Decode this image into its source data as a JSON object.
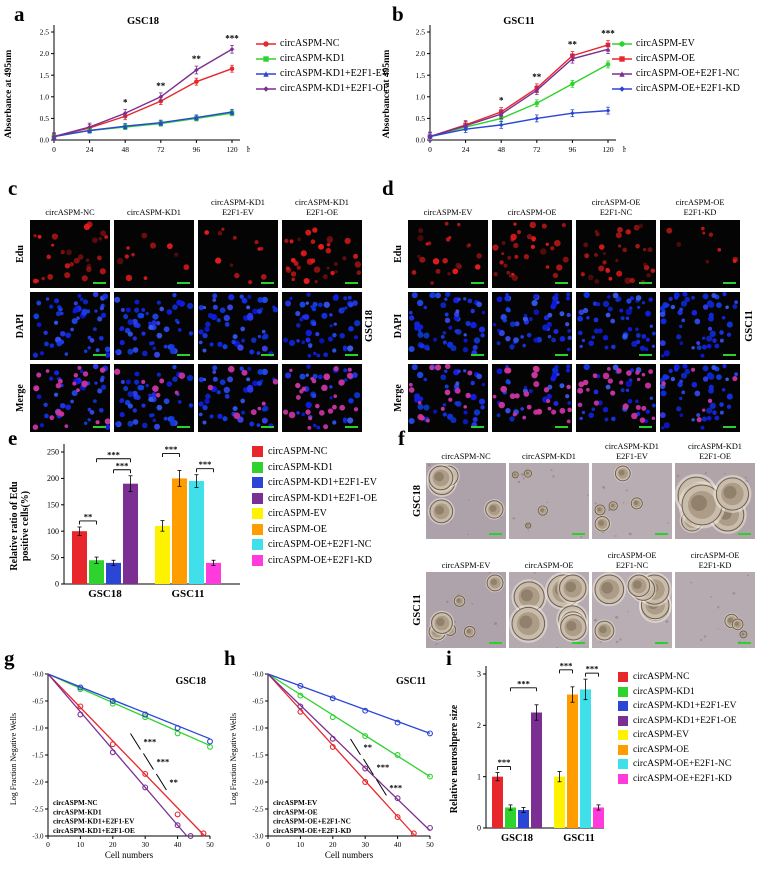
{
  "colors": {
    "red": "#e8272c",
    "green": "#2ed32e",
    "blue": "#2b45d4",
    "purple": "#7b2f92",
    "yellow": "#fff200",
    "orange": "#ff9d00",
    "cyan": "#3fe0ea",
    "magenta": "#ff3bdb",
    "scalebar": "#2bd12b",
    "axis": "#000000"
  },
  "panels": {
    "a": {
      "letter": "a"
    },
    "b": {
      "letter": "b"
    },
    "c": {
      "letter": "c",
      "row_labels": [
        "Edu",
        "DAPI",
        "Merge"
      ],
      "side_label": "GSC18",
      "col_headers": [
        [
          "circASPM-NC"
        ],
        [
          "circASPM-KD1"
        ],
        [
          "circASPM-KD1",
          "E2F1-EV"
        ],
        [
          "circASPM-KD1",
          "E2F1-OE"
        ]
      ]
    },
    "d": {
      "letter": "d",
      "row_labels": [
        "Edu",
        "DAPI",
        "Merge"
      ],
      "side_label": "GSC11",
      "col_headers": [
        [
          "circASPM-EV"
        ],
        [
          "circASPM-OE"
        ],
        [
          "circASPM-OE",
          "E2F1-NC"
        ],
        [
          "circASPM-OE",
          "E2F1-KD"
        ]
      ]
    },
    "e": {
      "letter": "e"
    },
    "f": {
      "letter": "f",
      "rows": [
        {
          "side_label": "GSC18",
          "col_headers": [
            [
              "circASPM-NC"
            ],
            [
              "circASPM-KD1"
            ],
            [
              "circASPM-KD1",
              "E2F1-EV"
            ],
            [
              "circASPM-KD1",
              "E2F1-OE"
            ]
          ]
        },
        {
          "side_label": "GSC11",
          "col_headers": [
            [
              "circASPM-EV"
            ],
            [
              "circASPM-OE"
            ],
            [
              "circASPM-OE",
              "E2F1-NC"
            ],
            [
              "circASPM-OE",
              "E2F1-KD"
            ]
          ]
        }
      ]
    },
    "g": {
      "letter": "g"
    },
    "h": {
      "letter": "h"
    },
    "i": {
      "letter": "i"
    }
  },
  "chart_data": [
    {
      "id": "a",
      "type": "line",
      "title": "GSC18",
      "ylabel": "Absorbance at 495nm",
      "xunit": "h",
      "x": [
        0,
        24,
        48,
        72,
        96,
        120
      ],
      "ylim": [
        0,
        2.5
      ],
      "yticks": [
        "0.0",
        "0.5",
        "1.0",
        "1.5",
        "2.0",
        "2.5"
      ],
      "series": [
        {
          "name": "circASPM-NC",
          "color_key": "red",
          "err": 0.08,
          "values": [
            0.08,
            0.28,
            0.55,
            0.9,
            1.35,
            1.65
          ]
        },
        {
          "name": "circASPM-KD1",
          "color_key": "green",
          "err": 0.06,
          "values": [
            0.08,
            0.22,
            0.3,
            0.38,
            0.5,
            0.62
          ]
        },
        {
          "name": "circASPM-KD1+E2F1-EV",
          "color_key": "blue",
          "err": 0.06,
          "values": [
            0.08,
            0.22,
            0.32,
            0.4,
            0.52,
            0.65
          ]
        },
        {
          "name": "circASPM-KD1+E2F1-OE",
          "color_key": "purple",
          "err": 0.09,
          "values": [
            0.08,
            0.3,
            0.62,
            1.0,
            1.62,
            2.1
          ]
        }
      ],
      "significance": [
        {
          "x": 48,
          "label": "*"
        },
        {
          "x": 72,
          "label": "**"
        },
        {
          "x": 96,
          "label": "**"
        },
        {
          "x": 120,
          "label": "***"
        }
      ]
    },
    {
      "id": "b",
      "type": "line",
      "title": "GSC11",
      "ylabel": "Absorbance at 495nm",
      "xunit": "h",
      "x": [
        0,
        24,
        48,
        72,
        96,
        120
      ],
      "ylim": [
        0,
        2.5
      ],
      "yticks": [
        "0.0",
        "0.5",
        "1.0",
        "1.5",
        "2.0",
        "2.5"
      ],
      "series": [
        {
          "name": "circASPM-EV",
          "color_key": "green",
          "err": 0.08,
          "values": [
            0.08,
            0.3,
            0.5,
            0.85,
            1.3,
            1.75
          ]
        },
        {
          "name": "circASPM-OE",
          "color_key": "red",
          "err": 0.1,
          "values": [
            0.08,
            0.35,
            0.65,
            1.2,
            1.95,
            2.2
          ]
        },
        {
          "name": "circASPM-OE+E2F1-NC",
          "color_key": "purple",
          "err": 0.1,
          "values": [
            0.08,
            0.33,
            0.6,
            1.15,
            1.88,
            2.1
          ]
        },
        {
          "name": "circASPM-OE+E2F1-KD",
          "color_key": "blue",
          "err": 0.08,
          "values": [
            0.08,
            0.25,
            0.35,
            0.5,
            0.62,
            0.68
          ]
        }
      ],
      "significance": [
        {
          "x": 48,
          "label": "*"
        },
        {
          "x": 72,
          "label": "**"
        },
        {
          "x": 96,
          "label": "**"
        },
        {
          "x": 120,
          "label": "***"
        }
      ]
    },
    {
      "id": "e",
      "type": "bar",
      "ylabel": "Relative ratio of Edu\npositive cells(%)",
      "ylim": [
        0,
        250
      ],
      "yticks": [
        "0",
        "50",
        "100",
        "150",
        "200",
        "250"
      ],
      "groups": [
        "GSC18",
        "GSC11"
      ],
      "bars": [
        {
          "group": "GSC18",
          "name": "circASPM-NC",
          "color_key": "red",
          "value": 100,
          "err": 8
        },
        {
          "group": "GSC18",
          "name": "circASPM-KD1",
          "color_key": "green",
          "value": 45,
          "err": 6
        },
        {
          "group": "GSC18",
          "name": "circASPM-KD1+E2F1-EV",
          "color_key": "blue",
          "value": 40,
          "err": 5
        },
        {
          "group": "GSC18",
          "name": "circASPM-KD1+E2F1-OE",
          "color_key": "purple",
          "value": 190,
          "err": 15
        },
        {
          "group": "GSC11",
          "name": "circASPM-EV",
          "color_key": "yellow",
          "value": 110,
          "err": 10
        },
        {
          "group": "GSC11",
          "name": "circASPM-OE",
          "color_key": "orange",
          "value": 200,
          "err": 15
        },
        {
          "group": "GSC11",
          "name": "circASPM-OE+E2F1-NC",
          "color_key": "cyan",
          "value": 195,
          "err": 12
        },
        {
          "group": "GSC11",
          "name": "circASPM-OE+E2F1-KD",
          "color_key": "magenta",
          "value": 40,
          "err": 5
        }
      ],
      "legend": [
        {
          "label": "circASPM-NC",
          "color_key": "red"
        },
        {
          "label": "circASPM-KD1",
          "color_key": "green"
        },
        {
          "label": "circASPM-KD1+E2F1-EV",
          "color_key": "blue"
        },
        {
          "label": "circASPM-KD1+E2F1-OE",
          "color_key": "purple"
        },
        {
          "label": "circASPM-EV",
          "color_key": "yellow"
        },
        {
          "label": "circASPM-OE",
          "color_key": "orange"
        },
        {
          "label": "circASPM-OE+E2F1-NC",
          "color_key": "cyan"
        },
        {
          "label": "circASPM-OE+E2F1-KD",
          "color_key": "magenta"
        }
      ],
      "significance": [
        {
          "from": 0,
          "to": 1,
          "label": "**",
          "h": 0
        },
        {
          "from": 1,
          "to": 3,
          "label": "***",
          "h": 1
        },
        {
          "from": 2,
          "to": 3,
          "label": "***",
          "h": 0
        },
        {
          "from": 4,
          "to": 5,
          "label": "***",
          "h": 1
        },
        {
          "from": 6,
          "to": 7,
          "label": "***",
          "h": 0
        }
      ]
    },
    {
      "id": "g",
      "type": "scatter",
      "title": "GSC18",
      "xlabel": "Cell numbers",
      "ylabel": "Log Fraction Negative Wells",
      "xlim": [
        0,
        50
      ],
      "ylim": [
        -3.0,
        0
      ],
      "xticks": [
        "0",
        "10",
        "20",
        "30",
        "40",
        "50"
      ],
      "yticks": [
        "-0.0",
        "-0.5",
        "-1.0",
        "-1.5",
        "-2.0",
        "-2.5",
        "-3.0"
      ],
      "series": [
        {
          "name": "circASPM-NC",
          "color_key": "red",
          "slope": -0.062,
          "points": [
            [
              10,
              -0.6
            ],
            [
              20,
              -1.3
            ],
            [
              30,
              -1.85
            ],
            [
              40,
              -2.6
            ],
            [
              48,
              -2.95
            ]
          ]
        },
        {
          "name": "circASPM-KD1",
          "color_key": "green",
          "slope": -0.0265,
          "points": [
            [
              10,
              -0.28
            ],
            [
              20,
              -0.55
            ],
            [
              30,
              -0.8
            ],
            [
              40,
              -1.1
            ],
            [
              50,
              -1.35
            ]
          ]
        },
        {
          "name": "circASPM-KD1+E2F1-EV",
          "color_key": "blue",
          "slope": -0.024,
          "points": [
            [
              10,
              -0.25
            ],
            [
              20,
              -0.5
            ],
            [
              30,
              -0.75
            ],
            [
              40,
              -1.0
            ],
            [
              50,
              -1.25
            ]
          ]
        },
        {
          "name": "circASPM-KD1+E2F1-OE",
          "color_key": "purple",
          "slope": -0.07,
          "points": [
            [
              10,
              -0.75
            ],
            [
              20,
              -1.45
            ],
            [
              30,
              -2.1
            ],
            [
              40,
              -2.8
            ],
            [
              44,
              -3.0
            ]
          ]
        }
      ],
      "annotations": [
        {
          "x": 27,
          "y": -1.25,
          "label": "***"
        },
        {
          "x": 31,
          "y": -1.62,
          "label": "***"
        },
        {
          "x": 35,
          "y": -2.0,
          "label": "**"
        }
      ]
    },
    {
      "id": "h",
      "type": "scatter",
      "title": "GSC11",
      "xlabel": "Cell numbers",
      "ylabel": "Log Fraction Negative Wells",
      "xlim": [
        0,
        50
      ],
      "ylim": [
        -3.0,
        0
      ],
      "xticks": [
        "0",
        "10",
        "20",
        "30",
        "40",
        "50"
      ],
      "yticks": [
        "-0.0",
        "-0.5",
        "-1.0",
        "-1.5",
        "-2.0",
        "-2.5",
        "-3.0"
      ],
      "series": [
        {
          "name": "circASPM-EV",
          "color_key": "green",
          "slope": -0.038,
          "points": [
            [
              10,
              -0.4
            ],
            [
              20,
              -0.8
            ],
            [
              30,
              -1.15
            ],
            [
              40,
              -1.5
            ],
            [
              50,
              -1.9
            ]
          ]
        },
        {
          "name": "circASPM-OE",
          "color_key": "red",
          "slope": -0.066,
          "points": [
            [
              10,
              -0.7
            ],
            [
              20,
              -1.35
            ],
            [
              30,
              -2.0
            ],
            [
              40,
              -2.65
            ],
            [
              45,
              -2.95
            ]
          ]
        },
        {
          "name": "circASPM-OE+E2F1-NC",
          "color_key": "purple",
          "slope": -0.058,
          "points": [
            [
              10,
              -0.6
            ],
            [
              20,
              -1.2
            ],
            [
              30,
              -1.75
            ],
            [
              40,
              -2.3
            ],
            [
              50,
              -2.85
            ]
          ]
        },
        {
          "name": "circASPM-OE+E2F1-KD",
          "color_key": "blue",
          "slope": -0.022,
          "points": [
            [
              10,
              -0.22
            ],
            [
              20,
              -0.45
            ],
            [
              30,
              -0.68
            ],
            [
              40,
              -0.9
            ],
            [
              50,
              -1.1
            ]
          ]
        }
      ],
      "annotations": [
        {
          "x": 27,
          "y": -1.35,
          "label": "**"
        },
        {
          "x": 31,
          "y": -1.72,
          "label": "***"
        },
        {
          "x": 35,
          "y": -2.1,
          "label": "***"
        }
      ]
    },
    {
      "id": "i",
      "type": "bar",
      "ylabel": "Relative neuroshpere size",
      "ylim": [
        0,
        3
      ],
      "yticks": [
        "0",
        "1",
        "2",
        "3"
      ],
      "groups": [
        "GSC18",
        "GSC11"
      ],
      "bars": [
        {
          "group": "GSC18",
          "name": "circASPM-NC",
          "color_key": "red",
          "value": 1.0,
          "err": 0.08
        },
        {
          "group": "GSC18",
          "name": "circASPM-KD1",
          "color_key": "green",
          "value": 0.4,
          "err": 0.05
        },
        {
          "group": "GSC18",
          "name": "circASPM-KD1+E2F1-EV",
          "color_key": "blue",
          "value": 0.35,
          "err": 0.05
        },
        {
          "group": "GSC18",
          "name": "circASPM-KD1+E2F1-OE",
          "color_key": "purple",
          "value": 2.25,
          "err": 0.15
        },
        {
          "group": "GSC11",
          "name": "circASPM-EV",
          "color_key": "yellow",
          "value": 1.0,
          "err": 0.1
        },
        {
          "group": "GSC11",
          "name": "circASPM-OE",
          "color_key": "orange",
          "value": 2.6,
          "err": 0.15
        },
        {
          "group": "GSC11",
          "name": "circASPM-OE+E2F1-NC",
          "color_key": "cyan",
          "value": 2.7,
          "err": 0.2
        },
        {
          "group": "GSC11",
          "name": "circASPM-OE+E2F1-KD",
          "color_key": "magenta",
          "value": 0.4,
          "err": 0.05
        }
      ],
      "legend": [
        {
          "label": "circASPM-NC",
          "color_key": "red"
        },
        {
          "label": "circASPM-KD1",
          "color_key": "green"
        },
        {
          "label": "circASPM-KD1+E2F1-EV",
          "color_key": "blue"
        },
        {
          "label": "circASPM-KD1+E2F1-OE",
          "color_key": "purple"
        },
        {
          "label": "circASPM-EV",
          "color_key": "yellow"
        },
        {
          "label": "circASPM-OE",
          "color_key": "orange"
        },
        {
          "label": "circASPM-OE+E2F1-NC",
          "color_key": "cyan"
        },
        {
          "label": "circASPM-OE+E2F1-KD",
          "color_key": "magenta"
        }
      ],
      "significance": [
        {
          "from": 0,
          "to": 1,
          "label": "***",
          "h": 0
        },
        {
          "from": 1,
          "to": 3,
          "label": "***",
          "h": 1
        },
        {
          "from": 4,
          "to": 5,
          "label": "***",
          "h": 1
        },
        {
          "from": 6,
          "to": 7,
          "label": "***",
          "h": 0
        }
      ]
    }
  ],
  "microscopy": {
    "dapi_per_image": 55,
    "c": {
      "edu_density": [
        28,
        11,
        12,
        36
      ],
      "merge_red_density": [
        20,
        7,
        8,
        26
      ]
    },
    "d": {
      "edu_density": [
        24,
        36,
        34,
        9
      ],
      "merge_red_density": [
        16,
        26,
        25,
        6
      ]
    },
    "f": {
      "rows": [
        {
          "spheres": [
            [
              6,
              10
            ],
            [
              4,
              4
            ],
            [
              5,
              6
            ],
            [
              5,
              16
            ]
          ]
        },
        {
          "spheres": [
            [
              6,
              8
            ],
            [
              7,
              14
            ],
            [
              7,
              13
            ],
            [
              3,
              5
            ]
          ]
        }
      ]
    }
  }
}
